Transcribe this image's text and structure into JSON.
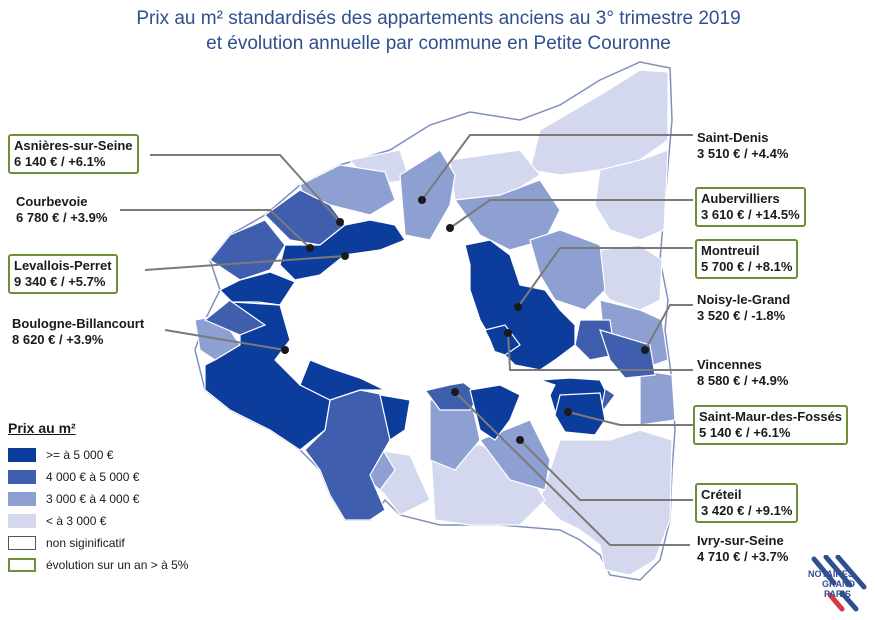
{
  "title": {
    "line1": "Prix au m² standardisés des appartements anciens au 3° trimestre 2019",
    "line2": "et évolution annuelle par commune en Petite Couronne"
  },
  "colors": {
    "very_high": "#0c3c9c",
    "high": "#3f5fae",
    "mid": "#8e9fd2",
    "low": "#d3d8ee",
    "ns": "#ffffff",
    "highlight_border": "#6d8f3a",
    "leader": "#7a7a7a"
  },
  "labels": [
    {
      "id": "asnieres",
      "name": "Asnières-sur-Seine",
      "price": "6 140 € / +6.1%",
      "boxed": true
    },
    {
      "id": "courbevoie",
      "name": "Courbevoie",
      "price": "6 780 € / +3.9%",
      "boxed": false
    },
    {
      "id": "levallois",
      "name": "Levallois-Perret",
      "price": "9 340 € / +5.7%",
      "boxed": true
    },
    {
      "id": "boulogne",
      "name": "Boulogne-Billancourt",
      "price": "8 620 € / +3.9%",
      "boxed": false
    },
    {
      "id": "saint_denis",
      "name": "Saint-Denis",
      "price": "3 510 € / +4.4%",
      "boxed": false
    },
    {
      "id": "aubervilliers",
      "name": "Aubervilliers",
      "price": "3 610 € / +14.5%",
      "boxed": true
    },
    {
      "id": "montreuil",
      "name": "Montreuil",
      "price": "5 700 € / +8.1%",
      "boxed": true
    },
    {
      "id": "noisy",
      "name": "Noisy-le-Grand",
      "price": "3 520 € / -1.8%",
      "boxed": false
    },
    {
      "id": "vincennes",
      "name": "Vincennes",
      "price": "8 580 € / +4.9%",
      "boxed": false
    },
    {
      "id": "saint_maur",
      "name": "Saint-Maur-des-Fossés",
      "price": "5 140 € / +6.1%",
      "boxed": true
    },
    {
      "id": "creteil",
      "name": "Créteil",
      "price": "3 420 € / +9.1%",
      "boxed": true
    },
    {
      "id": "ivry",
      "name": "Ivry-sur-Seine",
      "price": "4 710 € / +3.7%",
      "boxed": false
    }
  ],
  "legend": {
    "title": "Prix au m²",
    "items": [
      {
        "text": ">= à 5 000 €",
        "color": "#0c3c9c"
      },
      {
        "text": "4 000 € à 5 000 €",
        "color": "#3f5fae"
      },
      {
        "text": "3 000 € à 4 000 €",
        "color": "#8e9fd2"
      },
      {
        "text": "< à 3 000 €",
        "color": "#d3d8ee"
      },
      {
        "text": "non siginificatif",
        "color": "#ffffff"
      },
      {
        "text": "évolution sur un an > à 5%",
        "color": "#ffffff"
      }
    ]
  },
  "logo": {
    "line1": "NOTAIRES",
    "line2": "GRAND",
    "line3": "PARIS"
  }
}
